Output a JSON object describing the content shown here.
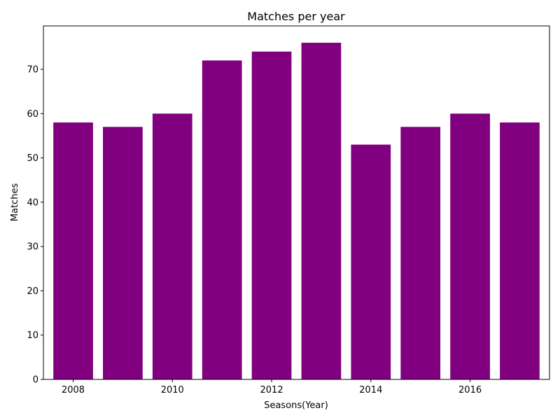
{
  "chart_data": {
    "type": "bar",
    "title": "Matches per year",
    "xlabel": "Seasons(Year)",
    "ylabel": "Matches",
    "categories": [
      2008,
      2009,
      2010,
      2011,
      2012,
      2013,
      2014,
      2015,
      2016,
      2017
    ],
    "values": [
      58,
      57,
      60,
      72,
      74,
      76,
      53,
      57,
      60,
      58
    ],
    "bar_color": "#800080",
    "xlim": [
      2007.4,
      2017.6
    ],
    "ylim": [
      0,
      79.8
    ],
    "x_ticks": [
      2008,
      2010,
      2012,
      2014,
      2016
    ],
    "y_ticks": [
      0,
      10,
      20,
      30,
      40,
      50,
      60,
      70
    ],
    "grid": false
  }
}
